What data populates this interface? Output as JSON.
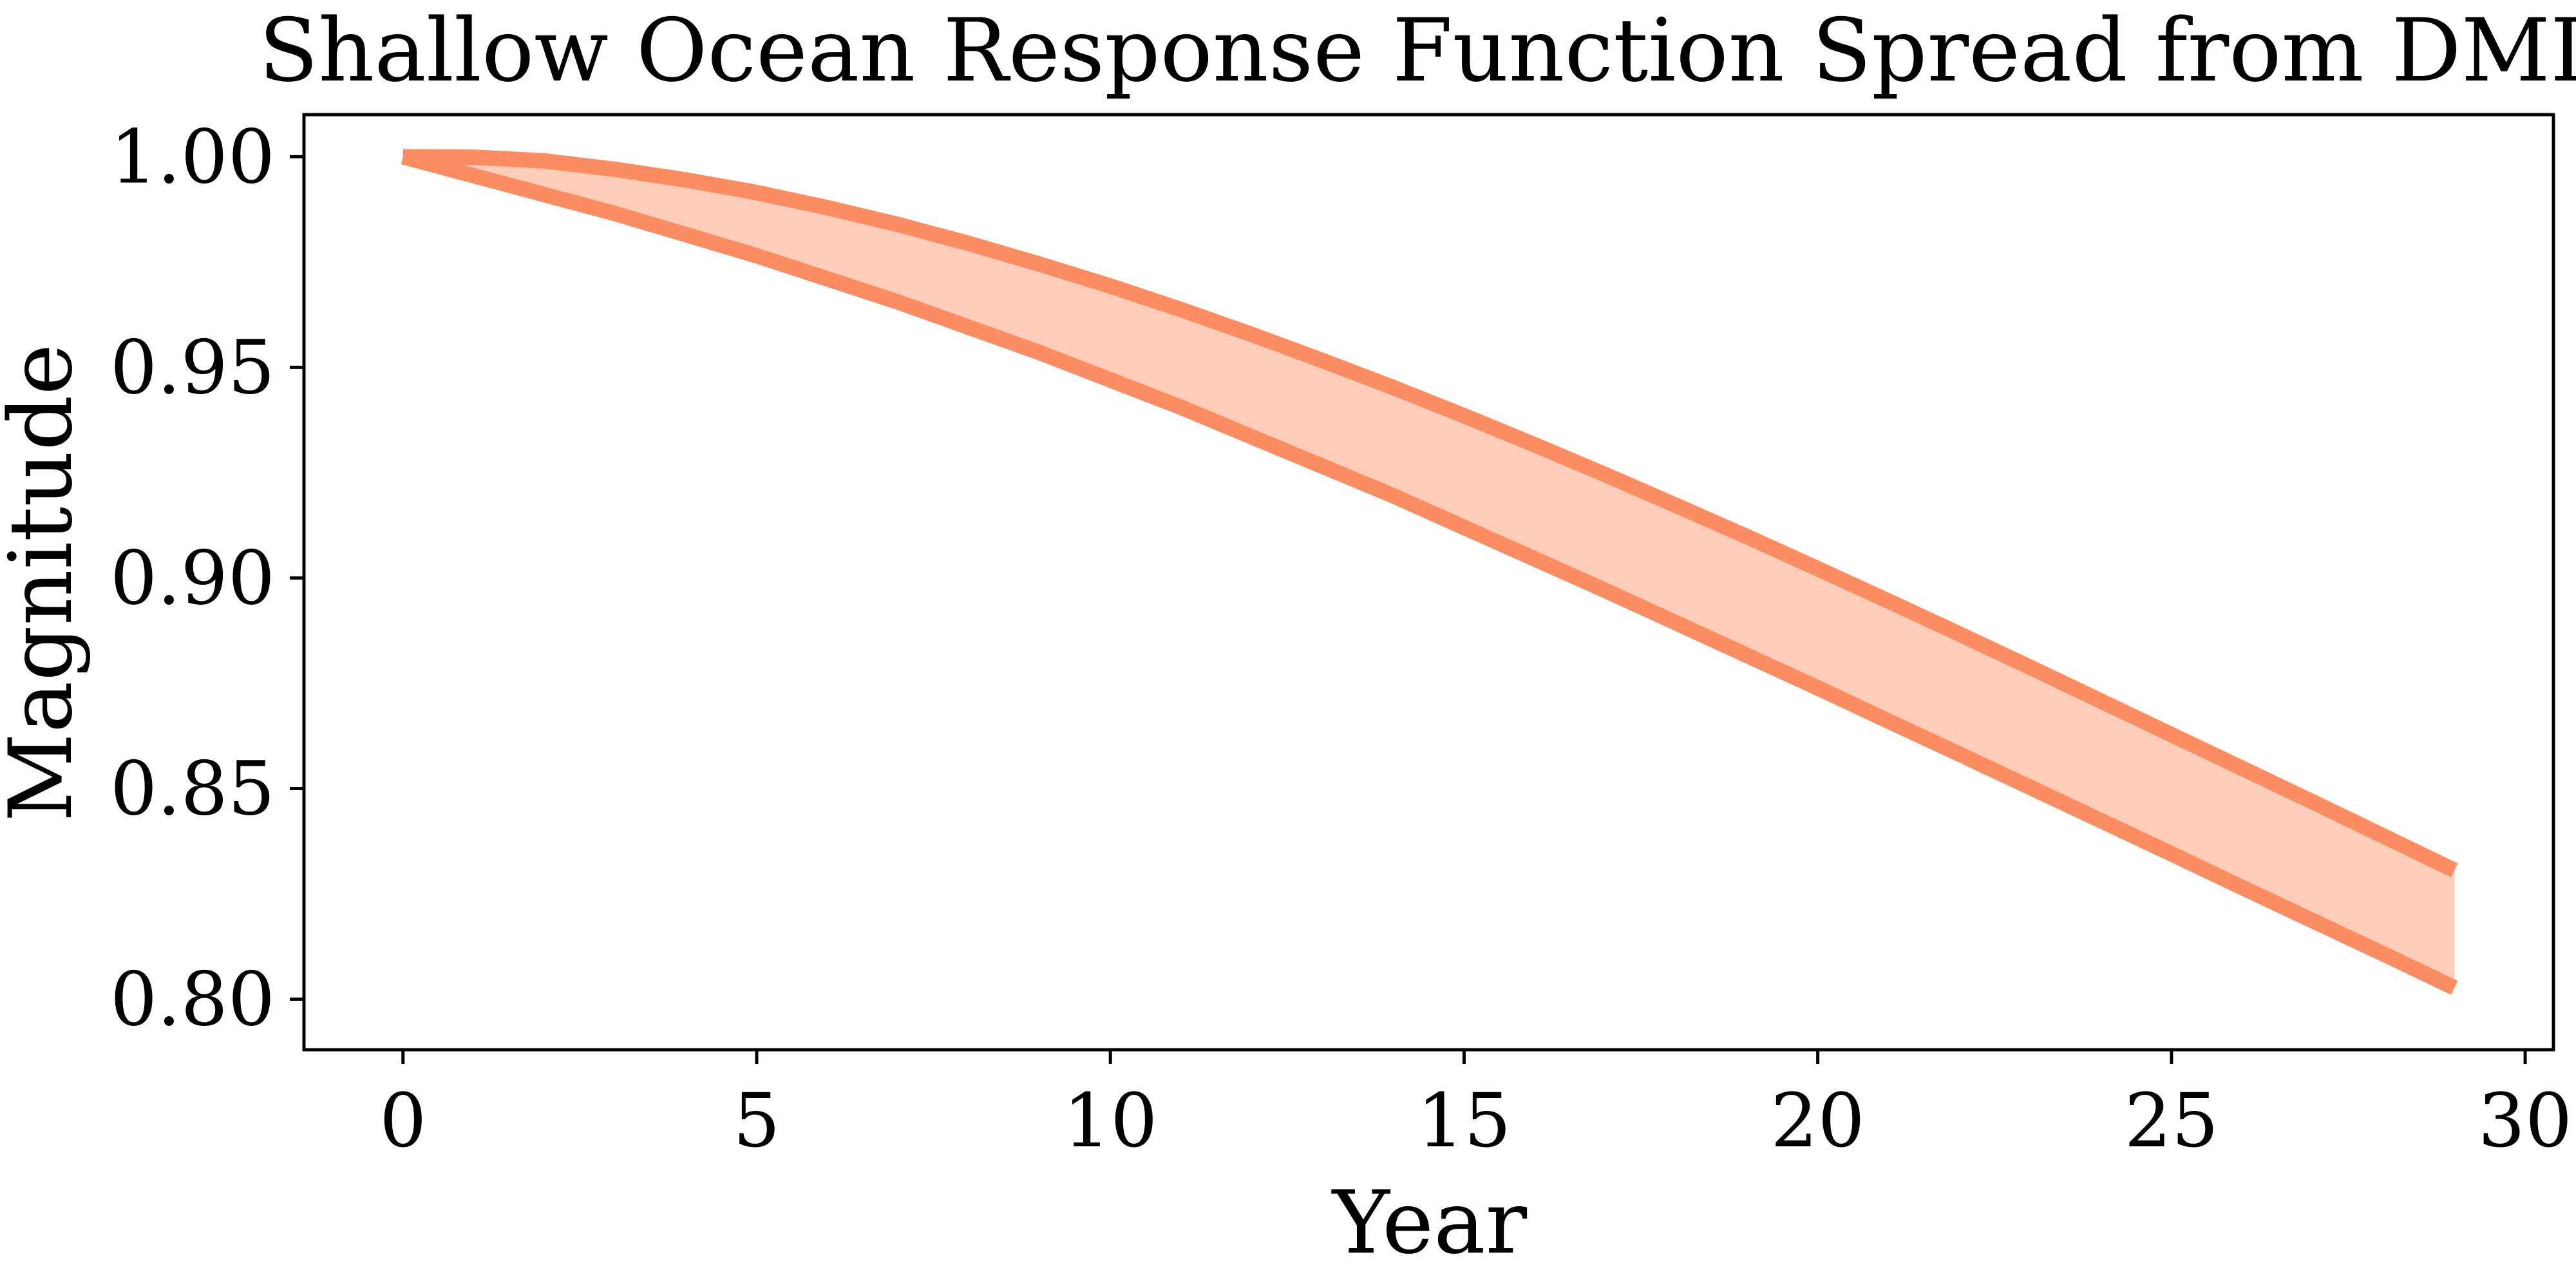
{
  "chart_data": {
    "type": "area",
    "title": "Shallow Ocean Response Function Spread from DMD",
    "xlabel": "Year",
    "ylabel": "Magnitude",
    "xlim": [
      -1.4,
      30.4
    ],
    "ylim": [
      0.788,
      1.01
    ],
    "x_ticks": [
      0,
      5,
      10,
      15,
      20,
      25,
      30
    ],
    "x_tick_labels": [
      "0",
      "5",
      "10",
      "15",
      "20",
      "25",
      "30"
    ],
    "y_ticks": [
      0.8,
      0.85,
      0.9,
      0.95,
      1.0
    ],
    "y_tick_labels": [
      "0.80",
      "0.85",
      "0.90",
      "0.95",
      "1.00"
    ],
    "grid": false,
    "legend": "none",
    "series_color": "#fc8d62",
    "fill_color": "#fdcdb9",
    "x": [
      0,
      1,
      2,
      3,
      4,
      5,
      6,
      7,
      8,
      9,
      10,
      11,
      12,
      13,
      14,
      15,
      16,
      17,
      18,
      19,
      20,
      21,
      22,
      23,
      24,
      25,
      26,
      27,
      28,
      29
    ],
    "series": [
      {
        "values": [
          1.0,
          0.9999,
          0.999,
          0.997,
          0.9945,
          0.9915,
          0.9879,
          0.9839,
          0.9794,
          0.9745,
          0.9693,
          0.9637,
          0.9578,
          0.9516,
          0.9452,
          0.9385,
          0.9316,
          0.9245,
          0.9172,
          0.9098,
          0.9022,
          0.8945,
          0.8867,
          0.8788,
          0.8708,
          0.8628,
          0.8548,
          0.8468,
          0.8387,
          0.8306
        ]
      },
      {
        "values": [
          1.0,
          0.9955,
          0.991,
          0.9865,
          0.9815,
          0.9765,
          0.971,
          0.9655,
          0.9595,
          0.9535,
          0.947,
          0.9405,
          0.9335,
          0.9265,
          0.9195,
          0.912,
          0.9045,
          0.897,
          0.8893,
          0.8816,
          0.8739,
          0.866,
          0.8582,
          0.8503,
          0.8424,
          0.8345,
          0.8265,
          0.8186,
          0.8107,
          0.8027
        ]
      }
    ]
  }
}
